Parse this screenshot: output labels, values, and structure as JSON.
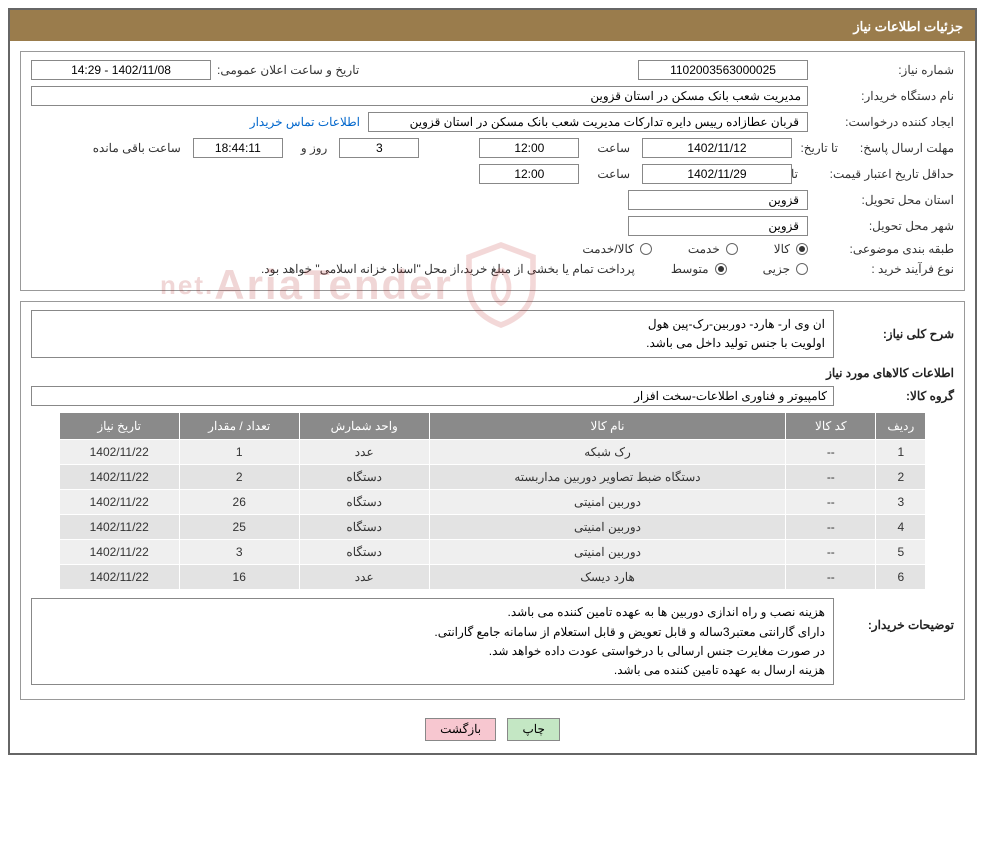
{
  "header": {
    "title": "جزئیات اطلاعات نیاز"
  },
  "info": {
    "request_no_lbl": "شماره نیاز:",
    "request_no": "1102003563000025",
    "announce_lbl": "تاریخ و ساعت اعلان عمومی:",
    "announce_val": "1402/11/08 - 14:29",
    "buyer_lbl": "نام دستگاه خریدار:",
    "buyer_val": "مدیریت شعب بانک مسکن در استان قزوین",
    "creator_lbl": "ایجاد کننده درخواست:",
    "creator_val": "قربان عطازاده رییس دایره تدارکات مدیریت شعب بانک مسکن در استان قزوین",
    "contact_link": "اطلاعات تماس خریدار",
    "deadline_lbl": "مهلت ارسال پاسخ:",
    "until_lbl": "تا تاریخ:",
    "deadline_date": "1402/11/12",
    "hour_lbl": "ساعت",
    "deadline_hour": "12:00",
    "days_remaining": "3",
    "days_unit": "روز و",
    "time_remaining": "18:44:11",
    "time_unit": "ساعت باقی مانده",
    "min_valid_lbl": "حداقل تاریخ اعتبار قیمت:",
    "min_valid_date": "1402/11/29",
    "min_valid_hour": "12:00",
    "province_lbl": "استان محل تحویل:",
    "province_val": "قزوین",
    "city_lbl": "شهر محل تحویل:",
    "city_val": "قزوین",
    "class_lbl": "طبقه بندی موضوعی:",
    "class_goods": "کالا",
    "class_service": "خدمت",
    "class_both": "کالا/خدمت",
    "proc_lbl": "نوع فرآیند خرید :",
    "proc_minor": "جزیی",
    "proc_medium": "متوسط",
    "proc_note": "پرداخت تمام یا بخشی از مبلغ خرید،از محل \"اسناد خزانه اسلامی\" خواهد بود."
  },
  "need": {
    "desc_lbl": "شرح کلی نیاز:",
    "desc_txt": "ان وی ار- هارد- دوربین-رک-پین هول\nاولویت با جنس تولید داخل می باشد.",
    "items_title": "اطلاعات کالاهای مورد نیاز",
    "group_lbl": "گروه کالا:",
    "group_val": "کامپیوتر و فناوری اطلاعات-سخت افزار",
    "cols": [
      "ردیف",
      "کد کالا",
      "نام کالا",
      "واحد شمارش",
      "تعداد / مقدار",
      "تاریخ نیاز"
    ],
    "rows": [
      [
        "1",
        "--",
        "رک شبکه",
        "عدد",
        "1",
        "1402/11/22"
      ],
      [
        "2",
        "--",
        "دستگاه ضبط تصاویر دوربین مداربسته",
        "دستگاه",
        "2",
        "1402/11/22"
      ],
      [
        "3",
        "--",
        "دوربین امنیتی",
        "دستگاه",
        "26",
        "1402/11/22"
      ],
      [
        "4",
        "--",
        "دوربین امنیتی",
        "دستگاه",
        "25",
        "1402/11/22"
      ],
      [
        "5",
        "--",
        "دوربین امنیتی",
        "دستگاه",
        "3",
        "1402/11/22"
      ],
      [
        "6",
        "--",
        "هارد دیسک",
        "عدد",
        "16",
        "1402/11/22"
      ]
    ],
    "buyer_note_lbl": "توضیحات خریدار:",
    "buyer_note_txt": "هزینه نصب و راه اندازی دوربین ها به عهده تامین کننده می باشد.\nدارای گارانتی معتبر3ساله و قابل تعویض و قابل استعلام از سامانه جامع گارانتی.\nدر صورت مغایرت جنس ارسالی با درخواستی عودت داده خواهد شد.\nهزینه ارسال به عهده تامین کننده می باشد."
  },
  "buttons": {
    "print": "چاپ",
    "back": "بازگشت"
  },
  "watermark": {
    "text": "AriaTender"
  },
  "colors": {
    "header": "#9a7c4c",
    "link": "#0066cc",
    "th_bg": "#8a8a8a",
    "td_bg": "#efefef"
  }
}
